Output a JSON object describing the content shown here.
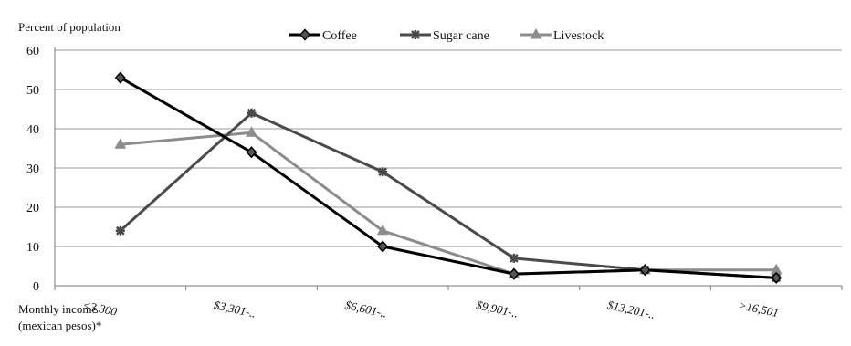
{
  "chart_data": {
    "type": "line",
    "title": "",
    "ylabel": "Percent of population",
    "xlabel_lines": [
      "Monthly income",
      "(mexican pesos)*"
    ],
    "categories": [
      "<3,300",
      "$3,301-..",
      "$6,601-..",
      "$9,901-..",
      "$13,201-..",
      ">16,501"
    ],
    "ylim": [
      0,
      60
    ],
    "yticks": [
      0,
      10,
      20,
      30,
      40,
      50,
      60
    ],
    "grid": true,
    "legend_position": "top-center",
    "series": [
      {
        "name": "Coffee",
        "values": [
          53,
          34,
          10,
          3,
          4,
          2
        ],
        "color": "#000000",
        "marker": "diamond"
      },
      {
        "name": "Sugar cane",
        "values": [
          14,
          44,
          29,
          7,
          4,
          2
        ],
        "color": "#4a4a4a",
        "marker": "cross"
      },
      {
        "name": "Livestock",
        "values": [
          36,
          39,
          14,
          3,
          4,
          4
        ],
        "color": "#8c8c8c",
        "marker": "triangle"
      }
    ]
  }
}
